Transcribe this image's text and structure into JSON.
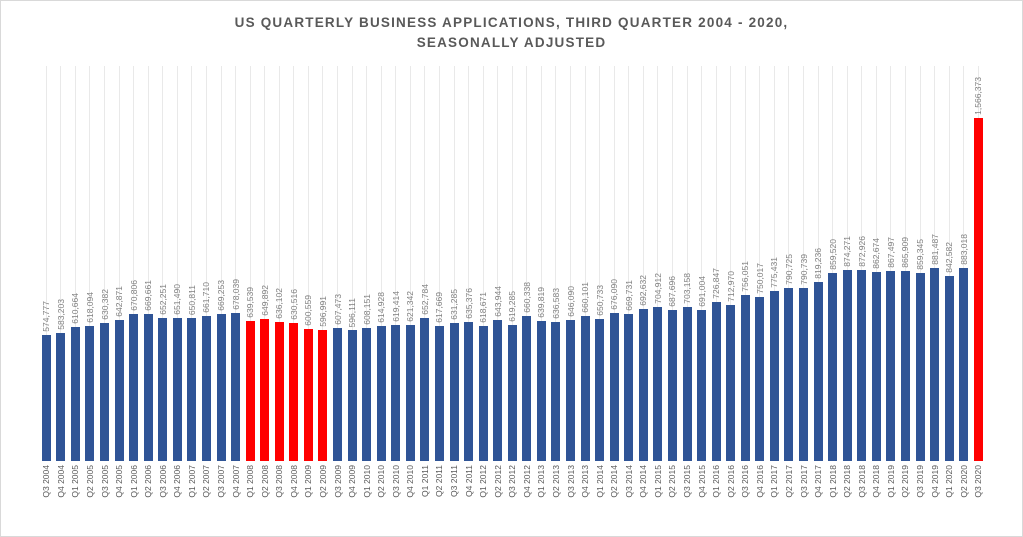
{
  "title": {
    "line1": "US  QUARTERLY BUSINESS APPLICATIONS, THIRD QUARTER 2004 - 2020,",
    "line2": "SEASONALLY ADJUSTED"
  },
  "chart_data": {
    "type": "bar",
    "title": "US QUARTERLY BUSINESS APPLICATIONS, THIRD QUARTER 2004 - 2020, SEASONALLY ADJUSTED",
    "xlabel": "",
    "ylabel": "",
    "ylim": [
      0,
      1566373
    ],
    "grid": "vertical-per-category",
    "legend": "none",
    "data_labels": "rotated-90-above-bars",
    "x_tick_labels": "rotated-90",
    "bar_color_default": "#2F5496",
    "bar_color_highlight": "#FF0000",
    "highlight_indices": [
      14,
      15,
      16,
      17,
      18,
      19,
      64
    ],
    "categories": [
      "Q3 2004",
      "Q4 2004",
      "Q1 2005",
      "Q2 2005",
      "Q3 2005",
      "Q4 2005",
      "Q1 2006",
      "Q2 2006",
      "Q3 2006",
      "Q4 2006",
      "Q1 2007",
      "Q2 2007",
      "Q3 2007",
      "Q4 2007",
      "Q1 2008",
      "Q2 2008",
      "Q3 2008",
      "Q4 2008",
      "Q1 2009",
      "Q2 2009",
      "Q3 2009",
      "Q4 2009",
      "Q1 2010",
      "Q2 2010",
      "Q3 2010",
      "Q4 2010",
      "Q1 2011",
      "Q2 2011",
      "Q3 2011",
      "Q4 2011",
      "Q1 2012",
      "Q2 2012",
      "Q3 2012",
      "Q4 2012",
      "Q1 2013",
      "Q2 2013",
      "Q3 2013",
      "Q4 2013",
      "Q1 2014",
      "Q2 2014",
      "Q3 2014",
      "Q4 2014",
      "Q1 2015",
      "Q2 2015",
      "Q3 2015",
      "Q4 2015",
      "Q1 2016",
      "Q2 2016",
      "Q3 2016",
      "Q4 2016",
      "Q1 2017",
      "Q2 2017",
      "Q3 2017",
      "Q4 2017",
      "Q1 2018",
      "Q2 2018",
      "Q3 2018",
      "Q4 2018",
      "Q1 2019",
      "Q2 2019",
      "Q3 2019",
      "Q4 2019",
      "Q1 2020",
      "Q2 2020",
      "Q3 2020"
    ],
    "values": [
      574777,
      583203,
      610664,
      618094,
      630382,
      642871,
      670806,
      669661,
      652251,
      651490,
      650811,
      661710,
      669253,
      678039,
      639539,
      649892,
      636102,
      630516,
      600559,
      596991,
      607473,
      596111,
      608151,
      614928,
      619414,
      621342,
      652784,
      617669,
      631285,
      635376,
      618671,
      643944,
      619285,
      660338,
      639819,
      636583,
      646090,
      660101,
      650733,
      676090,
      669731,
      692632,
      704912,
      687696,
      703158,
      691004,
      726847,
      712970,
      756051,
      750017,
      775431,
      790725,
      790739,
      819236,
      859520,
      874271,
      872926,
      862674,
      867497,
      865909,
      859345,
      881487,
      842582,
      883018,
      1566373
    ]
  }
}
